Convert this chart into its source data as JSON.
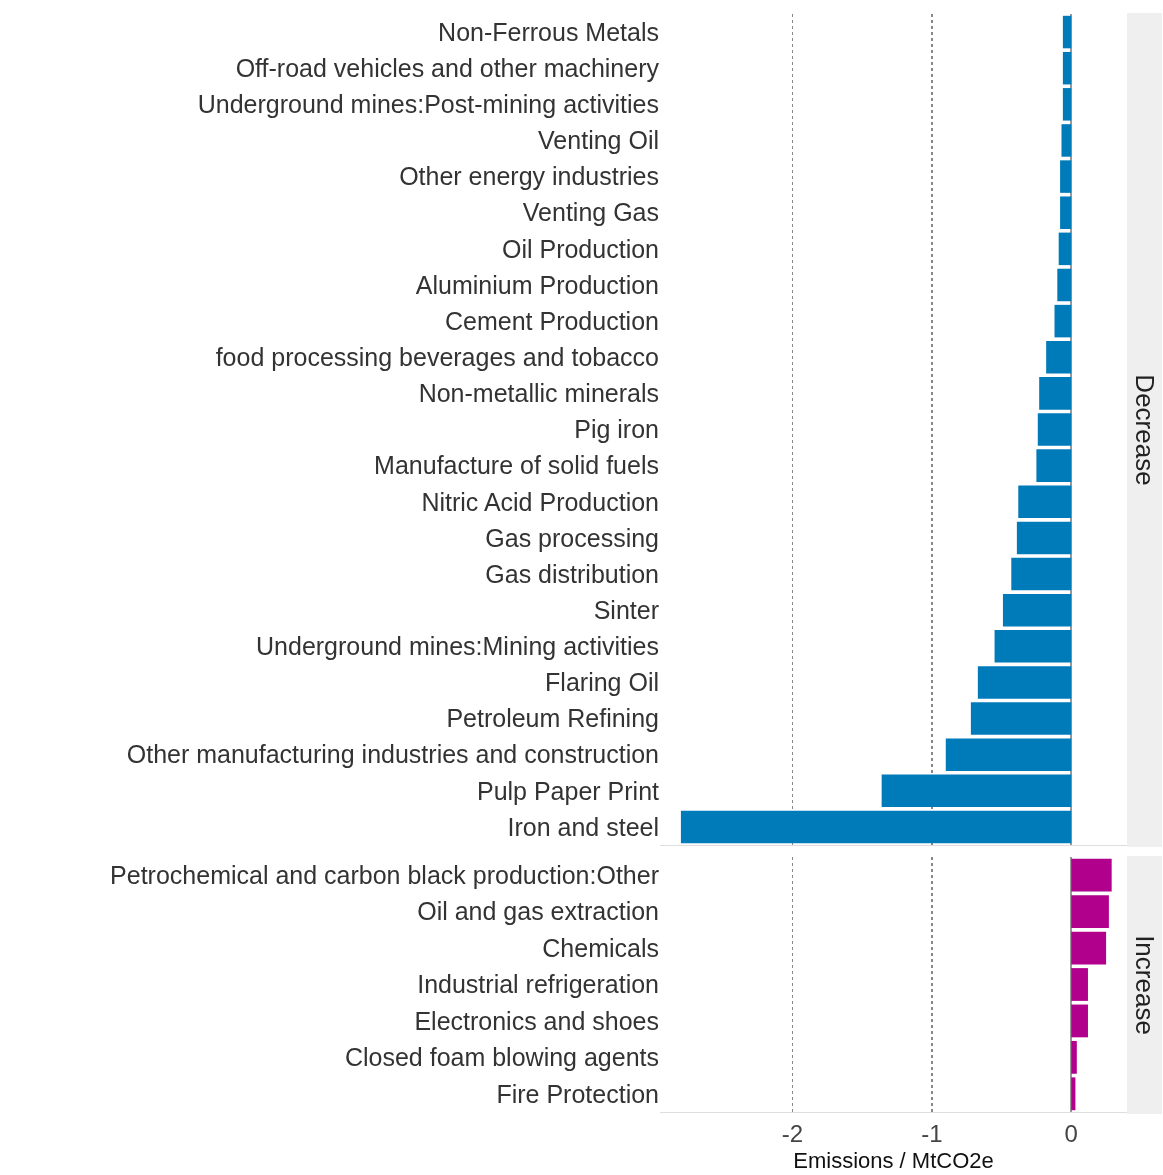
{
  "chart_data": [
    {
      "type": "bar",
      "orientation": "horizontal",
      "title": "Decrease",
      "categories": [
        "Non-Ferrous Metals",
        "Off-road vehicles and other machinery",
        "Underground mines:Post-mining activities",
        "Venting Oil",
        "Other energy industries",
        "Venting Gas",
        "Oil Production",
        "Aluminium Production",
        "Cement Production",
        "food processing beverages and tobacco",
        "Non-metallic minerals",
        "Pig iron",
        "Manufacture of solid fuels",
        "Nitric Acid Production",
        "Gas processing",
        "Gas distribution",
        "Sinter",
        "Underground mines:Mining activities",
        "Flaring Oil",
        "Petroleum Refining",
        "Other manufacturing industries and construction",
        "Pulp Paper Print",
        "Iron and steel"
      ],
      "values": [
        -0.06,
        -0.06,
        -0.06,
        -0.07,
        -0.08,
        -0.08,
        -0.09,
        -0.1,
        -0.12,
        -0.18,
        -0.23,
        -0.24,
        -0.25,
        -0.38,
        -0.39,
        -0.43,
        -0.49,
        -0.55,
        -0.67,
        -0.72,
        -0.9,
        -1.36,
        -2.8
      ],
      "color": "#007bba",
      "xlim": [
        -2.95,
        0.4
      ],
      "xticks": [
        -2,
        -1,
        0
      ],
      "grid": "x",
      "tick_labels": "y"
    },
    {
      "type": "bar",
      "orientation": "horizontal",
      "title": "Increase",
      "xlabel": "Emissions / MtCO2e",
      "categories": [
        "Petrochemical and carbon black production:Other",
        "Oil and gas extraction",
        "Chemicals",
        "Industrial refrigeration",
        "Electronics and shoes",
        "Closed foam blowing agents",
        "Fire Protection"
      ],
      "values": [
        0.29,
        0.27,
        0.25,
        0.12,
        0.12,
        0.04,
        0.03
      ],
      "color": "#b0008c",
      "xlim": [
        -2.95,
        0.4
      ],
      "xticks": [
        -2,
        -1,
        0
      ],
      "grid": "x"
    }
  ]
}
